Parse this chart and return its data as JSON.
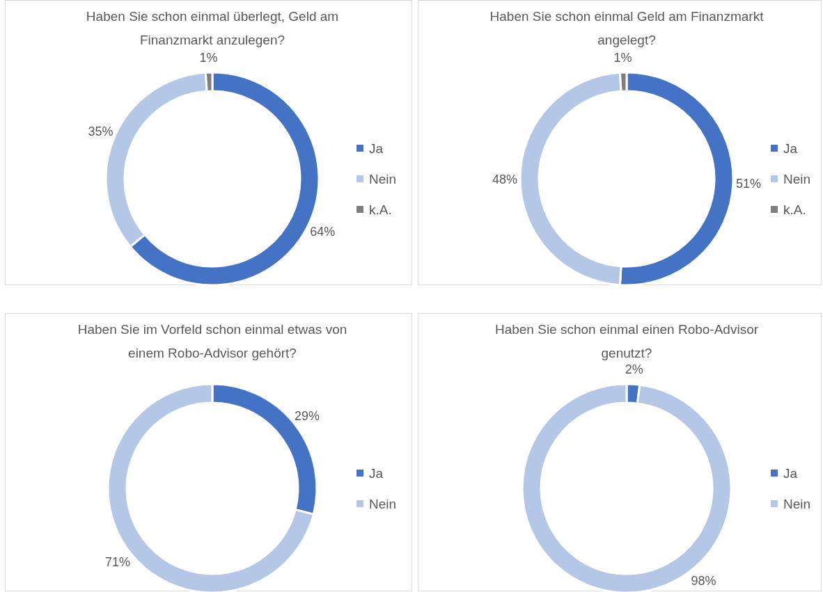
{
  "chart_data": [
    {
      "type": "donut",
      "title": "Haben Sie schon einmal überlegt, Geld am Finanzmarkt anzulegen?",
      "categories": [
        "Ja",
        "Nein",
        "k.A."
      ],
      "values": [
        64,
        35,
        1
      ],
      "colors": [
        "#4472c4",
        "#b4c7e7",
        "#7f7f7f"
      ],
      "value_labels": [
        "64%",
        "35%",
        "1%"
      ],
      "legend": "right"
    },
    {
      "type": "donut",
      "title": "Haben Sie schon einmal Geld am Finanzmarkt angelegt?",
      "categories": [
        "Ja",
        "Nein",
        "k.A."
      ],
      "values": [
        51,
        48,
        1
      ],
      "colors": [
        "#4472c4",
        "#b4c7e7",
        "#7f7f7f"
      ],
      "value_labels": [
        "51%",
        "48%",
        "1%"
      ],
      "legend": "right"
    },
    {
      "type": "donut",
      "title": "Haben Sie im Vorfeld schon einmal etwas von einem Robo-Advisor gehört?",
      "categories": [
        "Ja",
        "Nein"
      ],
      "values": [
        29,
        71
      ],
      "colors": [
        "#4472c4",
        "#b4c7e7"
      ],
      "value_labels": [
        "29%",
        "71%"
      ],
      "legend": "right"
    },
    {
      "type": "donut",
      "title": "Haben Sie schon einmal einen Robo-Advisor genutzt?",
      "categories": [
        "Ja",
        "Nein"
      ],
      "values": [
        2,
        98
      ],
      "colors": [
        "#4472c4",
        "#b4c7e7"
      ],
      "value_labels": [
        "2%",
        "98%"
      ],
      "legend": "right"
    }
  ]
}
